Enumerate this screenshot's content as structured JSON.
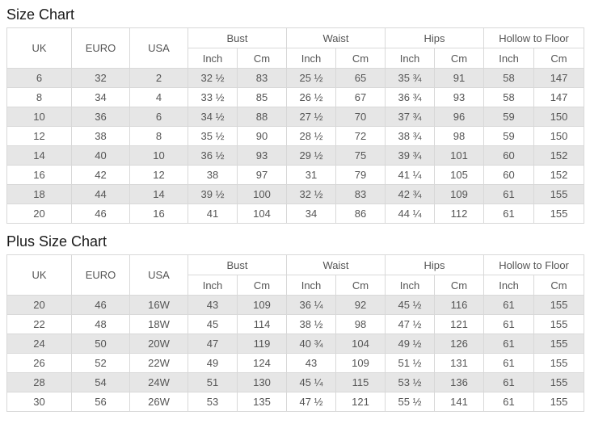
{
  "colors": {
    "row_stripe": "#e6e6e6",
    "border": "#d8d8d8",
    "cell_text": "#555555",
    "title_text": "#1a1a1a",
    "page_background": "#ffffff"
  },
  "chart_data": [
    {
      "type": "table",
      "title": "Size Chart",
      "simple_columns": [
        "UK",
        "EURO",
        "USA"
      ],
      "group_columns": [
        "Bust",
        "Waist",
        "Hips",
        "Hollow to Floor"
      ],
      "sub_columns": [
        "Inch",
        "Cm"
      ],
      "rows": [
        [
          "6",
          "32",
          "2",
          "32 ½",
          "83",
          "25 ½",
          "65",
          "35 ¾",
          "91",
          "58",
          "147"
        ],
        [
          "8",
          "34",
          "4",
          "33 ½",
          "85",
          "26 ½",
          "67",
          "36 ¾",
          "93",
          "58",
          "147"
        ],
        [
          "10",
          "36",
          "6",
          "34 ½",
          "88",
          "27 ½",
          "70",
          "37 ¾",
          "96",
          "59",
          "150"
        ],
        [
          "12",
          "38",
          "8",
          "35 ½",
          "90",
          "28 ½",
          "72",
          "38 ¾",
          "98",
          "59",
          "150"
        ],
        [
          "14",
          "40",
          "10",
          "36 ½",
          "93",
          "29 ½",
          "75",
          "39 ¾",
          "101",
          "60",
          "152"
        ],
        [
          "16",
          "42",
          "12",
          "38",
          "97",
          "31",
          "79",
          "41 ¼",
          "105",
          "60",
          "152"
        ],
        [
          "18",
          "44",
          "14",
          "39 ½",
          "100",
          "32 ½",
          "83",
          "42 ¾",
          "109",
          "61",
          "155"
        ],
        [
          "20",
          "46",
          "16",
          "41",
          "104",
          "34",
          "86",
          "44 ¼",
          "112",
          "61",
          "155"
        ]
      ]
    },
    {
      "type": "table",
      "title": "Plus Size Chart",
      "simple_columns": [
        "UK",
        "EURO",
        "USA"
      ],
      "group_columns": [
        "Bust",
        "Waist",
        "Hips",
        "Hollow to Floor"
      ],
      "sub_columns": [
        "Inch",
        "Cm"
      ],
      "rows": [
        [
          "20",
          "46",
          "16W",
          "43",
          "109",
          "36 ¼",
          "92",
          "45 ½",
          "116",
          "61",
          "155"
        ],
        [
          "22",
          "48",
          "18W",
          "45",
          "114",
          "38 ½",
          "98",
          "47 ½",
          "121",
          "61",
          "155"
        ],
        [
          "24",
          "50",
          "20W",
          "47",
          "119",
          "40 ¾",
          "104",
          "49 ½",
          "126",
          "61",
          "155"
        ],
        [
          "26",
          "52",
          "22W",
          "49",
          "124",
          "43",
          "109",
          "51 ½",
          "131",
          "61",
          "155"
        ],
        [
          "28",
          "54",
          "24W",
          "51",
          "130",
          "45 ¼",
          "115",
          "53 ½",
          "136",
          "61",
          "155"
        ],
        [
          "30",
          "56",
          "26W",
          "53",
          "135",
          "47 ½",
          "121",
          "55 ½",
          "141",
          "61",
          "155"
        ]
      ]
    }
  ]
}
